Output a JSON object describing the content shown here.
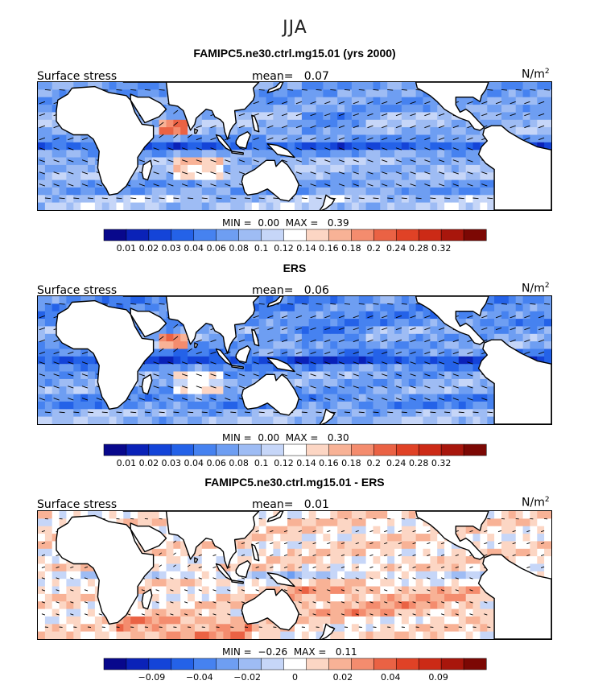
{
  "season": "JJA",
  "colors": {
    "scale": [
      "#08088c",
      "#0a22b8",
      "#1444d8",
      "#2462e8",
      "#4682f0",
      "#6e9ef2",
      "#9ebcf4",
      "#c6d6f8",
      "#ffffff",
      "#fcd6c4",
      "#f8b296",
      "#f48c6e",
      "#ea6244",
      "#e04226",
      "#cc2a16",
      "#a8160c",
      "#7c0804"
    ],
    "land": "#ffffff",
    "coast": "#000000"
  },
  "panels": [
    {
      "title": "FAMIPC5.ne30.ctrl.mg15.01 (yrs 2000)",
      "left_label": "Surface stress",
      "mean_label": "mean=",
      "mean_value": "0.07",
      "unit_label": "N/m",
      "unit_power": "2",
      "min_label": "MIN =",
      "min_value": "0.00",
      "max_label": "MAX =",
      "max_value": "0.39",
      "colorbar_ticks": [
        "0.01",
        "0.02",
        "0.03",
        "0.04",
        "0.06",
        "0.08",
        "0.1",
        "0.12",
        "0.14",
        "0.16",
        "0.18",
        "0.2",
        "0.24",
        "0.28",
        "0.32"
      ]
    },
    {
      "title": "ERS",
      "left_label": "Surface stress",
      "mean_label": "mean=",
      "mean_value": "0.06",
      "unit_label": "N/m",
      "unit_power": "2",
      "min_label": "MIN =",
      "min_value": "0.00",
      "max_label": "MAX =",
      "max_value": "0.30",
      "colorbar_ticks": [
        "0.01",
        "0.02",
        "0.03",
        "0.04",
        "0.06",
        "0.08",
        "0.1",
        "0.12",
        "0.14",
        "0.16",
        "0.18",
        "0.2",
        "0.24",
        "0.28",
        "0.32"
      ]
    },
    {
      "title": "FAMIPC5.ne30.ctrl.mg15.01 - ERS",
      "left_label": "Surface stress",
      "mean_label": "mean=",
      "mean_value": "0.01",
      "unit_label": "N/m",
      "unit_power": "2",
      "min_label": "MIN =",
      "min_value": "−0.26",
      "max_label": "MAX =",
      "max_value": "0.11",
      "colorbar_ticks": [
        "−0.09",
        "−0.04",
        "−0.02",
        "0",
        "0.02",
        "0.04",
        "0.09"
      ]
    }
  ],
  "chart_data": [
    {
      "type": "heatmap",
      "title": "FAMIPC5.ne30.ctrl.mg15.01 (yrs 2000)",
      "variable": "Surface stress",
      "units": "N/m^2",
      "mean": 0.07,
      "min": 0.0,
      "max": 0.39,
      "contour_levels": [
        0.01,
        0.02,
        0.03,
        0.04,
        0.06,
        0.08,
        0.1,
        0.12,
        0.14,
        0.16,
        0.18,
        0.2,
        0.24,
        0.28,
        0.32
      ]
    },
    {
      "type": "heatmap",
      "title": "ERS",
      "variable": "Surface stress",
      "units": "N/m^2",
      "mean": 0.06,
      "min": 0.0,
      "max": 0.3,
      "contour_levels": [
        0.01,
        0.02,
        0.03,
        0.04,
        0.06,
        0.08,
        0.1,
        0.12,
        0.14,
        0.16,
        0.18,
        0.2,
        0.24,
        0.28,
        0.32
      ]
    },
    {
      "type": "heatmap",
      "title": "FAMIPC5.ne30.ctrl.mg15.01 - ERS",
      "variable": "Surface stress",
      "units": "N/m^2",
      "mean": 0.01,
      "min": -0.26,
      "max": 0.11,
      "colorbar_labels": [
        -0.09,
        -0.04,
        -0.02,
        0,
        0.02,
        0.04,
        0.09
      ]
    }
  ]
}
